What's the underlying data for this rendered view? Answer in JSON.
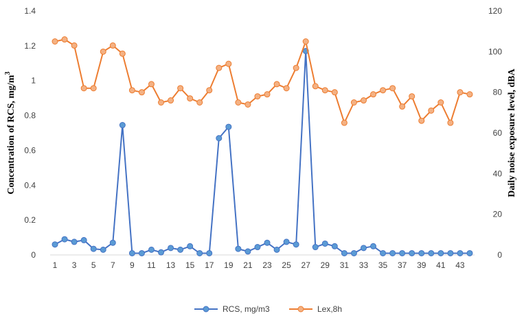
{
  "chart_data": {
    "type": "line",
    "x": [
      1,
      2,
      3,
      4,
      5,
      6,
      7,
      8,
      9,
      10,
      11,
      12,
      13,
      14,
      15,
      16,
      17,
      18,
      19,
      20,
      21,
      22,
      23,
      24,
      25,
      26,
      27,
      28,
      29,
      30,
      31,
      32,
      33,
      34,
      35,
      36,
      37,
      38,
      39,
      40,
      41,
      42,
      43,
      44
    ],
    "x_tick_labels": [
      "1",
      "3",
      "5",
      "7",
      "9",
      "11",
      "13",
      "15",
      "17",
      "19",
      "21",
      "23",
      "25",
      "27",
      "29",
      "31",
      "33",
      "35",
      "37",
      "39",
      "41",
      "43"
    ],
    "y_left": {
      "label": "Concentration of RCS, mg/m",
      "label_superscript": "3",
      "ylim": [
        0,
        1.4
      ],
      "ticks": [
        "0",
        "0.2",
        "0.4",
        "0.6",
        "0.8",
        "1",
        "1.2",
        "1.4"
      ]
    },
    "y_right": {
      "label": "Daily noise exposure level, dBA",
      "ylim": [
        0,
        120
      ],
      "ticks": [
        "0",
        "20",
        "40",
        "60",
        "80",
        "100",
        "120"
      ]
    },
    "series": [
      {
        "name": "RCS, mg/m3",
        "axis": "left",
        "color": "#4472C4",
        "values": [
          0.06,
          0.09,
          0.075,
          0.085,
          0.035,
          0.03,
          0.07,
          0.745,
          0.01,
          0.01,
          0.03,
          0.015,
          0.04,
          0.03,
          0.05,
          0.01,
          0.01,
          0.67,
          0.735,
          0.035,
          0.02,
          0.045,
          0.07,
          0.03,
          0.075,
          0.06,
          1.17,
          0.045,
          0.065,
          0.05,
          0.01,
          0.01,
          0.04,
          0.05,
          0.01,
          0.01,
          0.01,
          0.01,
          0.01,
          0.01,
          0.01,
          0.01,
          0.01,
          0.01
        ]
      },
      {
        "name": "Lex,8h",
        "axis": "right",
        "color": "#ED7D31",
        "values": [
          105,
          106,
          103,
          82,
          82,
          100,
          103,
          99,
          81,
          80,
          84,
          75,
          76,
          82,
          77,
          75,
          81,
          92,
          94,
          75,
          74,
          78,
          79,
          84,
          82,
          92,
          105,
          83,
          81,
          80,
          65,
          75,
          76,
          79,
          81,
          82,
          73,
          78,
          66,
          71,
          75,
          65,
          80,
          79
        ]
      }
    ],
    "grid": false,
    "legend_position": "bottom"
  }
}
